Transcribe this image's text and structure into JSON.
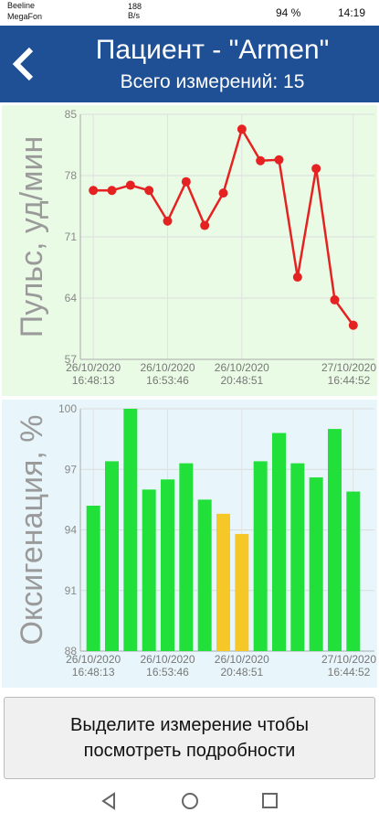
{
  "status_bar": {
    "carrier1": "Beeline",
    "carrier2": "MegaFon",
    "speed": "188 B/s",
    "battery": "94 %",
    "time": "14:19"
  },
  "header": {
    "title": "Пациент - \"Armen\"",
    "subtitle": "Всего измерений: 15"
  },
  "chart_data": [
    {
      "type": "line",
      "y_label": "Пульс, уд/мин",
      "color": "#e52222",
      "grid": true,
      "categories": [
        "26/10/2020\n16:48:13",
        null,
        null,
        null,
        "26/10/2020\n16:53:46",
        null,
        null,
        null,
        "26/10/2020\n20:48:51",
        null,
        null,
        null,
        null,
        null,
        "27/10/2020\n16:44:52"
      ],
      "values": [
        76.3,
        76.3,
        76.9,
        76.3,
        72.8,
        77.3,
        72.3,
        76.0,
        83.3,
        79.7,
        79.8,
        66.4,
        78.8,
        63.8,
        60.9
      ],
      "ylim": [
        57,
        85
      ],
      "yticks": [
        57,
        64,
        71,
        78,
        85
      ]
    },
    {
      "type": "bar",
      "y_label": "Оксигенация, %",
      "grid": true,
      "categories": [
        "26/10/2020\n16:48:13",
        null,
        null,
        null,
        "26/10/2020\n16:53:46",
        null,
        null,
        null,
        "26/10/2020\n20:48:51",
        null,
        null,
        null,
        null,
        null,
        "27/10/2020\n16:44:52"
      ],
      "values": [
        95.2,
        97.4,
        100,
        96,
        96.5,
        97.3,
        95.5,
        94.8,
        93.8,
        97.4,
        98.8,
        97.3,
        96.6,
        99,
        95.9
      ],
      "colors": [
        "#22e03a",
        "#22e03a",
        "#22e03a",
        "#22e03a",
        "#22e03a",
        "#22e03a",
        "#22e03a",
        "#f5c827",
        "#f5c827",
        "#22e03a",
        "#22e03a",
        "#22e03a",
        "#22e03a",
        "#22e03a",
        "#22e03a"
      ],
      "ylim": [
        88,
        100
      ],
      "yticks": [
        88,
        91,
        94,
        97,
        100
      ]
    }
  ],
  "button": {
    "lines": [
      "Выделите измерение чтобы",
      "посмотреть подробности"
    ]
  }
}
